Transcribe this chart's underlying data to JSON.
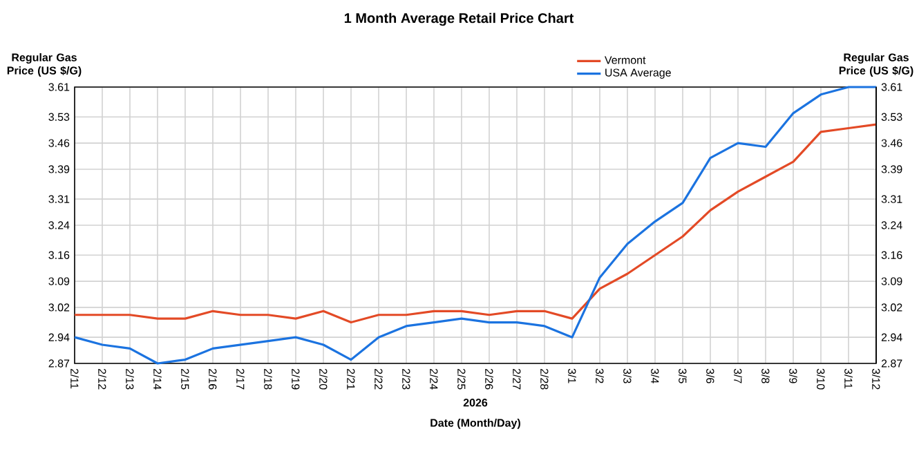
{
  "chart_data": {
    "type": "line",
    "title": "1 Month Average Retail Price Chart",
    "xlabel": "Date (Month/Day)",
    "ylabel": "Regular Gas Price (US $/G)",
    "y2label": "Regular Gas Price (US $/G)",
    "annotations": [
      "2026"
    ],
    "categories": [
      "2/11",
      "2/12",
      "2/13",
      "2/14",
      "2/15",
      "2/16",
      "2/17",
      "2/18",
      "2/19",
      "2/20",
      "2/21",
      "2/22",
      "2/23",
      "2/24",
      "2/25",
      "2/26",
      "2/27",
      "2/28",
      "3/1",
      "3/2",
      "3/3",
      "3/4",
      "3/5",
      "3/6",
      "3/7",
      "3/8",
      "3/9",
      "3/10",
      "3/11",
      "3/12"
    ],
    "series": [
      {
        "name": "Vermont",
        "color": "#e34a26",
        "values": [
          3.0,
          3.0,
          3.0,
          2.99,
          2.99,
          3.01,
          3.0,
          3.0,
          2.99,
          3.01,
          2.98,
          3.0,
          3.0,
          3.01,
          3.01,
          3.0,
          3.01,
          3.01,
          2.99,
          3.07,
          3.11,
          3.16,
          3.21,
          3.28,
          3.33,
          3.37,
          3.41,
          3.49,
          3.5,
          3.51
        ]
      },
      {
        "name": "USA Average",
        "color": "#1b73e0",
        "values": [
          2.94,
          2.92,
          2.91,
          2.87,
          2.88,
          2.91,
          2.92,
          2.93,
          2.94,
          2.92,
          2.88,
          2.94,
          2.97,
          2.98,
          2.99,
          2.98,
          2.98,
          2.97,
          2.94,
          3.1,
          3.19,
          3.25,
          3.3,
          3.42,
          3.46,
          3.45,
          3.54,
          3.59,
          3.61,
          3.61
        ]
      }
    ],
    "ylim": [
      2.87,
      3.61
    ],
    "yticks": [
      2.87,
      2.94,
      3.02,
      3.09,
      3.16,
      3.24,
      3.31,
      3.39,
      3.46,
      3.53,
      3.61
    ],
    "y2lim": [
      2.87,
      3.61
    ],
    "y2ticks": [
      2.87,
      2.94,
      3.02,
      3.09,
      3.16,
      3.24,
      3.31,
      3.39,
      3.46,
      3.53,
      3.61
    ],
    "grid": true,
    "legend": "top",
    "marker": "none",
    "line_style": "solid"
  }
}
